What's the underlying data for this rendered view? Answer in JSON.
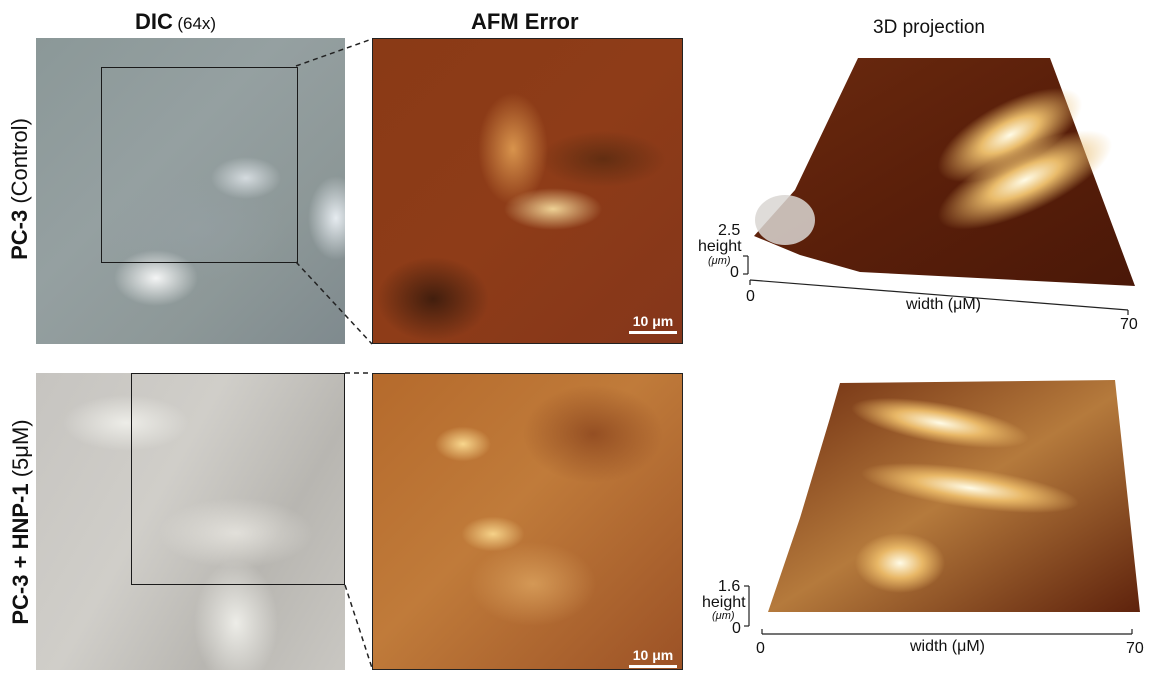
{
  "headers": {
    "dic_bold": "DIC",
    "dic_light": "(64x)",
    "afm": "AFM Error",
    "projection": "3D projection"
  },
  "rows": [
    {
      "label_bold": "PC-3",
      "label_light": "(Control)"
    },
    {
      "label_bold": "PC-3 + HNP-1",
      "label_light": "(5μM)"
    }
  ],
  "scale_bars": [
    "10 μm",
    "10 μm"
  ],
  "plots": [
    {
      "height_max": "2.5",
      "height_zero": "0",
      "height_label": "height",
      "height_unit": "(μm)",
      "width_label": "width (μM)",
      "width_min": "0",
      "width_max": "70"
    },
    {
      "height_max": "1.6",
      "height_zero": "0",
      "height_label": "height",
      "height_unit": "(μm)",
      "width_label": "width (μM)",
      "width_min": "0",
      "width_max": "70"
    }
  ]
}
